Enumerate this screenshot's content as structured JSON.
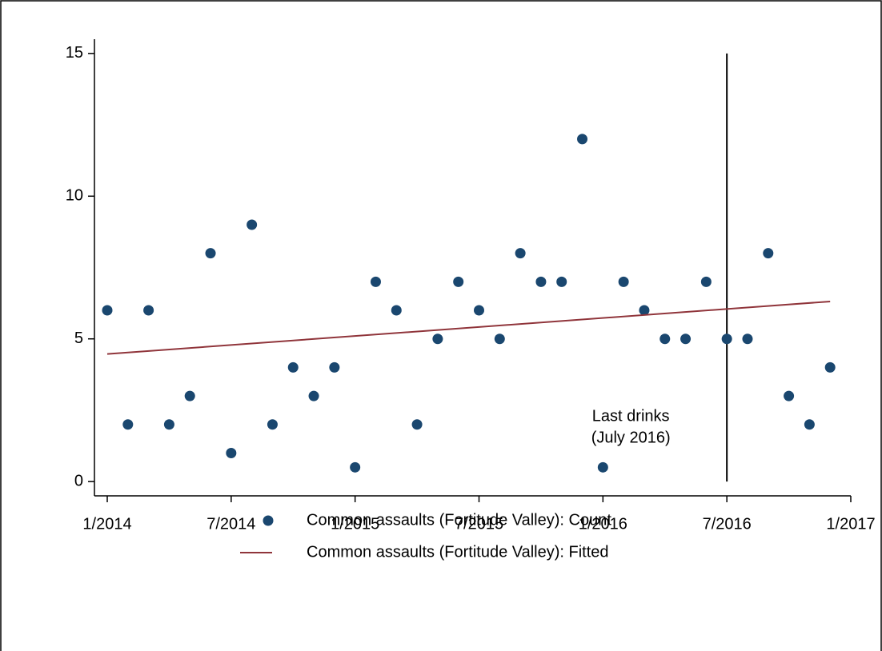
{
  "chart_data": {
    "type": "scatter",
    "x": [
      "2014-01",
      "2014-02",
      "2014-03",
      "2014-04",
      "2014-05",
      "2014-06",
      "2014-07",
      "2014-08",
      "2014-09",
      "2014-10",
      "2014-11",
      "2014-12",
      "2015-01",
      "2015-02",
      "2015-03",
      "2015-04",
      "2015-05",
      "2015-06",
      "2015-07",
      "2015-08",
      "2015-09",
      "2015-10",
      "2015-11",
      "2015-12",
      "2016-01",
      "2016-02",
      "2016-03",
      "2016-04",
      "2016-05",
      "2016-06",
      "2016-07",
      "2016-08",
      "2016-09",
      "2016-10",
      "2016-11",
      "2016-12"
    ],
    "series": [
      {
        "name": "Common assaults (Fortitude Valley): Count",
        "color": "#1a476f",
        "values": [
          6,
          2,
          6,
          2,
          3,
          8,
          1,
          9,
          2,
          4,
          3,
          4,
          0.5,
          7,
          6,
          2,
          5,
          7,
          6,
          5,
          8,
          7,
          7,
          12,
          0.5,
          7,
          6,
          5,
          5,
          7,
          5,
          5,
          8,
          3,
          2,
          4
        ]
      },
      {
        "name": "Common assaults (Fortitude Valley): Fitted",
        "color": "#90353b",
        "line": true,
        "x": [
          "2014-01",
          "2016-12"
        ],
        "values": [
          4.47,
          6.31
        ]
      }
    ],
    "xlim": [
      "2014-01",
      "2017-01"
    ],
    "xticks": [
      {
        "value": "2014-01",
        "label": "1/2014"
      },
      {
        "value": "2014-07",
        "label": "7/2014"
      },
      {
        "value": "2015-01",
        "label": "1/2015"
      },
      {
        "value": "2015-07",
        "label": "7/2015"
      },
      {
        "value": "2016-01",
        "label": "1/2016"
      },
      {
        "value": "2016-07",
        "label": "7/2016"
      },
      {
        "value": "2017-01",
        "label": "1/2017"
      }
    ],
    "ylim": [
      -0.5,
      15.5
    ],
    "yticks": [
      0,
      5,
      10,
      15
    ],
    "reference_line": {
      "x": "2016-07",
      "y": [
        0,
        15
      ],
      "label": [
        "Last drinks",
        "(July 2016)"
      ]
    }
  }
}
